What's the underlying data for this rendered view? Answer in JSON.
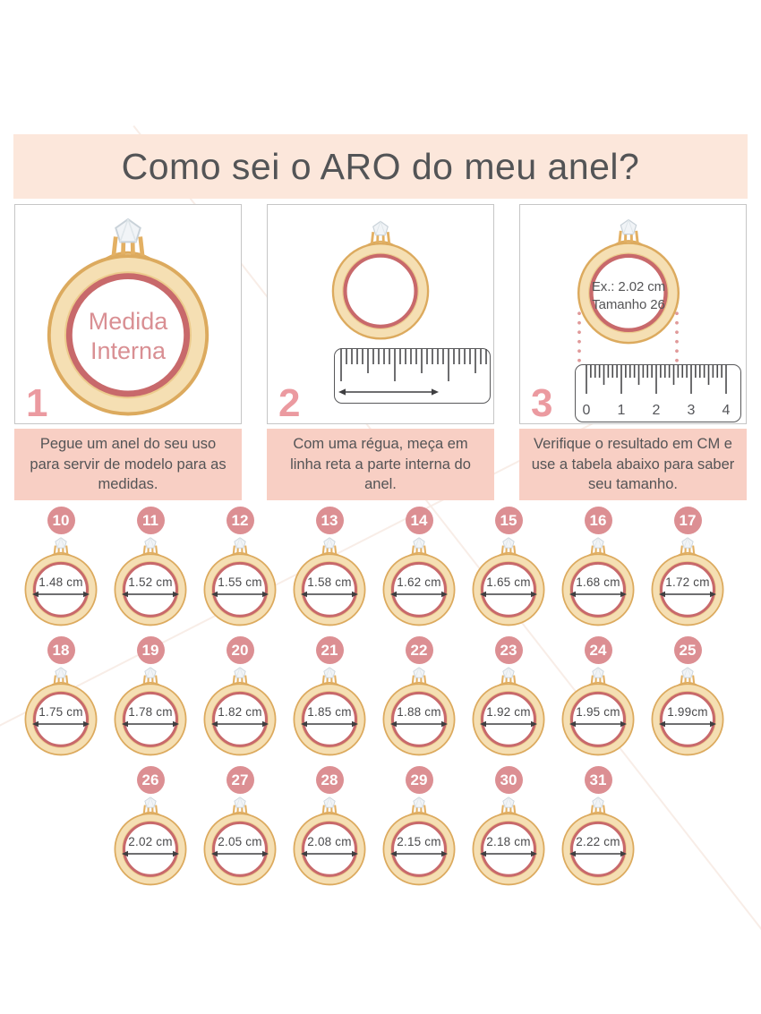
{
  "title": "Como sei o ARO do meu anel?",
  "steps": [
    {
      "number": "1",
      "caption": "Pegue um anel do seu uso para servir de modelo para as medidas.",
      "ring_text": [
        "Medida",
        "Interna"
      ]
    },
    {
      "number": "2",
      "caption": "Com uma régua, meça em linha reta a parte interna do anel."
    },
    {
      "number": "3",
      "caption": "Verifique o resultado em CM e use a tabela abaixo para saber seu tamanho.",
      "example": [
        "Ex.: 2.02 cm",
        "Tamanho 26"
      ],
      "ruler_numbers": [
        "0",
        "1",
        "2",
        "3",
        "4"
      ]
    }
  ],
  "size_chart": {
    "rows": [
      [
        {
          "size": "10",
          "diameter": "1.48 cm"
        },
        {
          "size": "11",
          "diameter": "1.52 cm"
        },
        {
          "size": "12",
          "diameter": "1.55 cm"
        },
        {
          "size": "13",
          "diameter": "1.58 cm"
        },
        {
          "size": "14",
          "diameter": "1.62 cm"
        },
        {
          "size": "15",
          "diameter": "1.65 cm"
        },
        {
          "size": "16",
          "diameter": "1.68 cm"
        },
        {
          "size": "17",
          "diameter": "1.72 cm"
        }
      ],
      [
        {
          "size": "18",
          "diameter": "1.75 cm"
        },
        {
          "size": "19",
          "diameter": "1.78 cm"
        },
        {
          "size": "20",
          "diameter": "1.82 cm"
        },
        {
          "size": "21",
          "diameter": "1.85 cm"
        },
        {
          "size": "22",
          "diameter": "1.88 cm"
        },
        {
          "size": "23",
          "diameter": "1.92 cm"
        },
        {
          "size": "24",
          "diameter": "1.95 cm"
        },
        {
          "size": "25",
          "diameter": "1.99cm"
        }
      ],
      [
        {
          "size": "26",
          "diameter": "2.02 cm"
        },
        {
          "size": "27",
          "diameter": "2.05 cm"
        },
        {
          "size": "28",
          "diameter": "2.08 cm"
        },
        {
          "size": "29",
          "diameter": "2.15 cm"
        },
        {
          "size": "30",
          "diameter": "2.18 cm"
        },
        {
          "size": "31",
          "diameter": "2.22 cm"
        }
      ]
    ]
  },
  "colors": {
    "banner_bg": "#fce7db",
    "caption_bg": "#f8cfc4",
    "badge": "#dc8f93",
    "step_number": "#eb9aa0",
    "gold_fill": "#f5dfb3",
    "gold_stroke": "#dcaa5e",
    "measure_ring": "#c8696b",
    "rose_text": "#d98f93",
    "text_dark": "#545456"
  }
}
